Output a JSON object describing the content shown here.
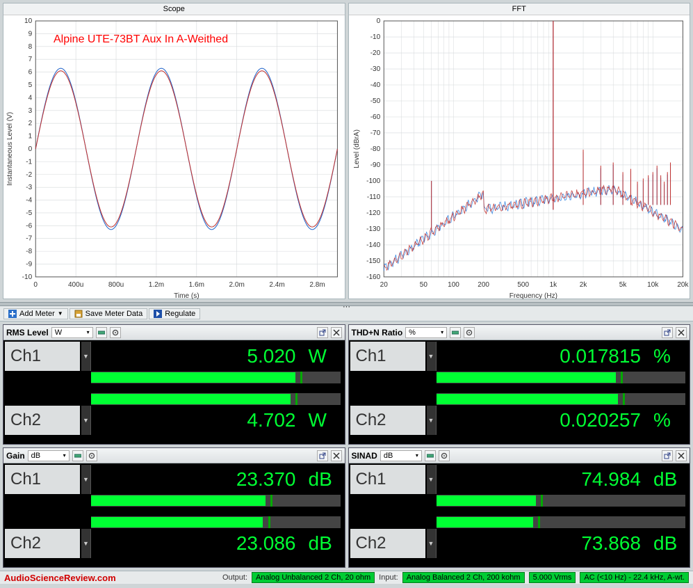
{
  "annotation": "Alpine UTE-73BT Aux In A-Weithed",
  "scope_chart": {
    "title": "Scope",
    "xlabel": "Time (s)",
    "ylabel": "Instantaneous Level (V)",
    "background_color": "#ffffff",
    "grid_color": "#d5d9db",
    "axis_color": "#555",
    "ylim": [
      -10,
      10
    ],
    "ytick_step": 1,
    "xlim": [
      0,
      0.003
    ],
    "xticks": [
      "0",
      "400u",
      "800u",
      "1.2m",
      "1.6m",
      "2.0m",
      "2.4m",
      "2.8m"
    ],
    "xtick_values": [
      0,
      0.0004,
      0.0008,
      0.0012,
      0.0016,
      0.002,
      0.0024,
      0.0028
    ],
    "label_fontsize": 10,
    "series": [
      {
        "color": "#2063c9",
        "amplitude": 6.3,
        "frequency": 1000,
        "line_width": 1
      },
      {
        "color": "#c3312e",
        "amplitude": 6.1,
        "frequency": 1000,
        "line_width": 1
      }
    ]
  },
  "fft_chart": {
    "title": "FFT",
    "xlabel": "Frequency (Hz)",
    "ylabel": "Level (dBrA)",
    "background_color": "#ffffff",
    "grid_color": "#d5d9db",
    "axis_color": "#555",
    "ylim": [
      -160,
      0
    ],
    "ytick_step": 10,
    "xlim": [
      20,
      20000
    ],
    "xticks": [
      "20",
      "50",
      "100",
      "200",
      "500",
      "1k",
      "2k",
      "5k",
      "10k",
      "20k"
    ],
    "xtick_values": [
      20,
      50,
      100,
      200,
      500,
      1000,
      2000,
      5000,
      10000,
      20000
    ],
    "label_fontsize": 10,
    "fundamental_hz": 1000,
    "fundamental_db": 0,
    "noise_floor_start_db": -155,
    "noise_floor_mid_db": -118,
    "mains_spike_hz": 60,
    "mains_spike_db": -100,
    "harmonics_db": [
      -82,
      -92,
      -90,
      -96,
      -94,
      -102,
      -100,
      -98,
      -96,
      -92,
      -98,
      -102,
      -96,
      -90
    ],
    "series_colors": [
      "#2b7fe0",
      "#c3312e"
    ]
  },
  "toolbar": {
    "add_meter": "Add Meter",
    "save_meter": "Save Meter Data",
    "regulate": "Regulate"
  },
  "meters": [
    {
      "name": "RMS Level",
      "unit_label": "W",
      "channels": [
        {
          "label": "Ch1",
          "value": "5.020",
          "unit": "W",
          "bar_pct": 82,
          "peak_pct": 84
        },
        {
          "label": "Ch2",
          "value": "4.702",
          "unit": "W",
          "bar_pct": 80,
          "peak_pct": 82
        }
      ]
    },
    {
      "name": "THD+N Ratio",
      "unit_label": "%",
      "channels": [
        {
          "label": "Ch1",
          "value": "0.017815",
          "unit": "%",
          "bar_pct": 72,
          "peak_pct": 74
        },
        {
          "label": "Ch2",
          "value": "0.020257",
          "unit": "%",
          "bar_pct": 73,
          "peak_pct": 75
        }
      ]
    },
    {
      "name": "Gain",
      "unit_label": "dB",
      "channels": [
        {
          "label": "Ch1",
          "value": "23.370",
          "unit": "dB",
          "bar_pct": 70,
          "peak_pct": 72
        },
        {
          "label": "Ch2",
          "value": "23.086",
          "unit": "dB",
          "bar_pct": 69,
          "peak_pct": 71
        }
      ]
    },
    {
      "name": "SINAD",
      "unit_label": "dB",
      "channels": [
        {
          "label": "Ch1",
          "value": "74.984",
          "unit": "dB",
          "bar_pct": 40,
          "peak_pct": 42
        },
        {
          "label": "Ch2",
          "value": "73.868",
          "unit": "dB",
          "bar_pct": 39,
          "peak_pct": 41
        }
      ]
    }
  ],
  "status": {
    "site": "AudioScienceReview.com",
    "output_label": "Output:",
    "output_value": "Analog Unbalanced 2 Ch, 20 ohm",
    "input_label": "Input:",
    "input_value": "Analog Balanced 2 Ch, 200 kohm",
    "level": "5.000 Vrms",
    "bandwidth": "AC (<10 Hz) - 22.4 kHz, A-wt."
  }
}
